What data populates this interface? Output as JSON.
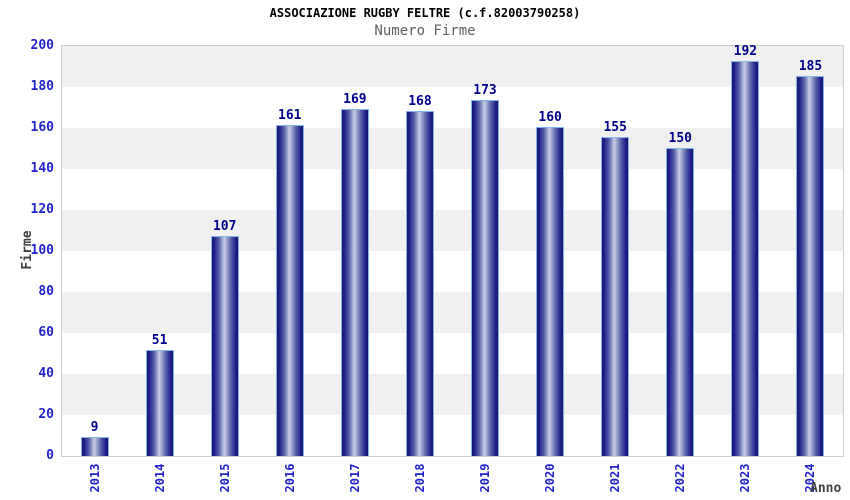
{
  "chart_data": {
    "type": "bar",
    "title": "ASSOCIAZIONE RUGBY FELTRE (c.f.82003790258)",
    "subtitle": "Numero Firme",
    "xlabel": "Anno",
    "ylabel": "Firme",
    "categories": [
      "2013",
      "2014",
      "2015",
      "2016",
      "2017",
      "2018",
      "2019",
      "2020",
      "2021",
      "2022",
      "2023",
      "2024"
    ],
    "values": [
      9,
      51,
      107,
      161,
      169,
      168,
      173,
      160,
      155,
      150,
      192,
      185
    ],
    "ylim": [
      0,
      200
    ],
    "yticks": [
      0,
      20,
      40,
      60,
      80,
      100,
      120,
      140,
      160,
      180,
      200
    ],
    "grid": "alternating-horizontal-bands",
    "legend": "none",
    "colors": {
      "bar_dark": "#16166b",
      "bar_mid": "#23238e",
      "bar_light": "#c9cfe6",
      "bar_border": "#85b4e6",
      "tick_label": "#2222cc",
      "value_label": "#00008b",
      "axis_title": "#404040",
      "title": "#000000",
      "subtitle": "#606060",
      "band_gray": "#f0f0f0",
      "band_white": "#ffffff",
      "plot_border": "#cccccc",
      "background": "#ffffff"
    }
  }
}
